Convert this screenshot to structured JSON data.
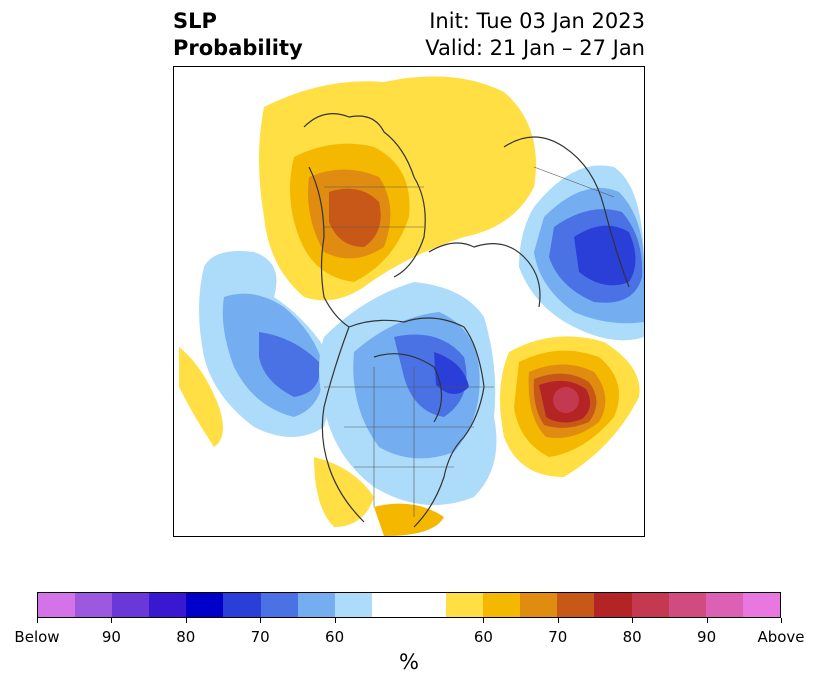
{
  "title": {
    "left_line1": "SLP",
    "left_line2": "Probability",
    "right_line1": "Init: Tue 03 Jan 2023",
    "right_line2": "Valid: 21 Jan – 27 Jan"
  },
  "colorbar": {
    "unit": "%",
    "colors": [
      "#d472e8",
      "#9d58e0",
      "#6a38d8",
      "#3a18d0",
      "#0000c8",
      "#2a3ed8",
      "#4a72e4",
      "#74aef0",
      "#acdcfa",
      "#ffffff",
      "#ffffff",
      "#ffdf44",
      "#f4b800",
      "#e08c10",
      "#c85818",
      "#b42424",
      "#c43850",
      "#d04c80",
      "#dc60b4",
      "#e878e0"
    ],
    "ticks": [
      {
        "label": "Below",
        "index": 0
      },
      {
        "label": "90",
        "index": 2
      },
      {
        "label": "80",
        "index": 4
      },
      {
        "label": "70",
        "index": 6
      },
      {
        "label": "60",
        "index": 8
      },
      {
        "label": "60",
        "index": 12
      },
      {
        "label": "70",
        "index": 14
      },
      {
        "label": "80",
        "index": 16
      },
      {
        "label": "90",
        "index": 18
      },
      {
        "label": "Above",
        "index": 20
      }
    ]
  }
}
